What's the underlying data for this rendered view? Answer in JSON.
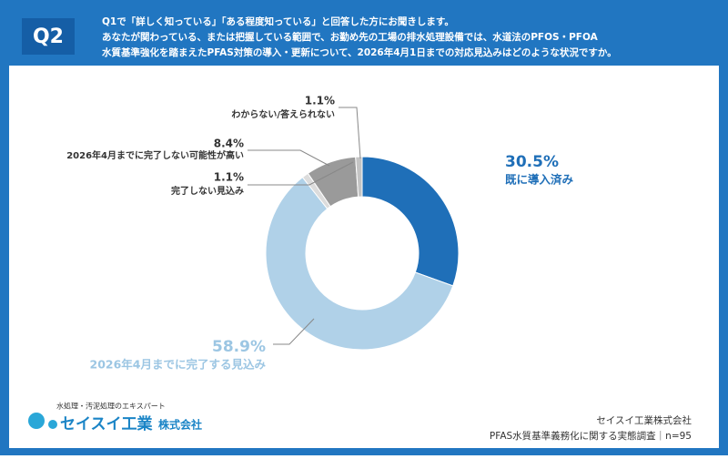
{
  "header": {
    "question_label": "Q2",
    "lines": [
      "Q1で「詳しく知っている」「ある程度知っている」と回答した方にお聞きします。",
      "あなたが関わっている、または把握している範囲で、お勤め先の工場の排水処理設備では、水道法のPFOS・PFOA",
      "水質基準強化を踏まえたPFAS対策の導入・更新について、2026年4月1日までの対応見込みはどのような状況ですか。"
    ]
  },
  "chart_data": {
    "type": "donut",
    "categories": [
      "既に導入済み",
      "2026年4月までに完了する見込み",
      "完了しない見込み",
      "2026年4月までに完了しない可能性が高い",
      "わからない/答えられない"
    ],
    "values": [
      30.5,
      58.9,
      1.1,
      8.4,
      1.1
    ],
    "value_labels": [
      "30.5%",
      "58.9%",
      "1.1%",
      "8.4%",
      "1.1%"
    ],
    "colors": [
      "#1f6fb8",
      "#b0d1e8",
      "#dcdcdc",
      "#9a9a9a",
      "#c4c4c4"
    ]
  },
  "logo": {
    "tagline": "水処理・汚泥処理のエキスパート",
    "name": "セイスイ工業",
    "suffix": "株式会社"
  },
  "footer": {
    "company": "セイスイ工業株式会社",
    "survey": "PFAS水質基準義務化に関する実態調査｜n=95"
  }
}
